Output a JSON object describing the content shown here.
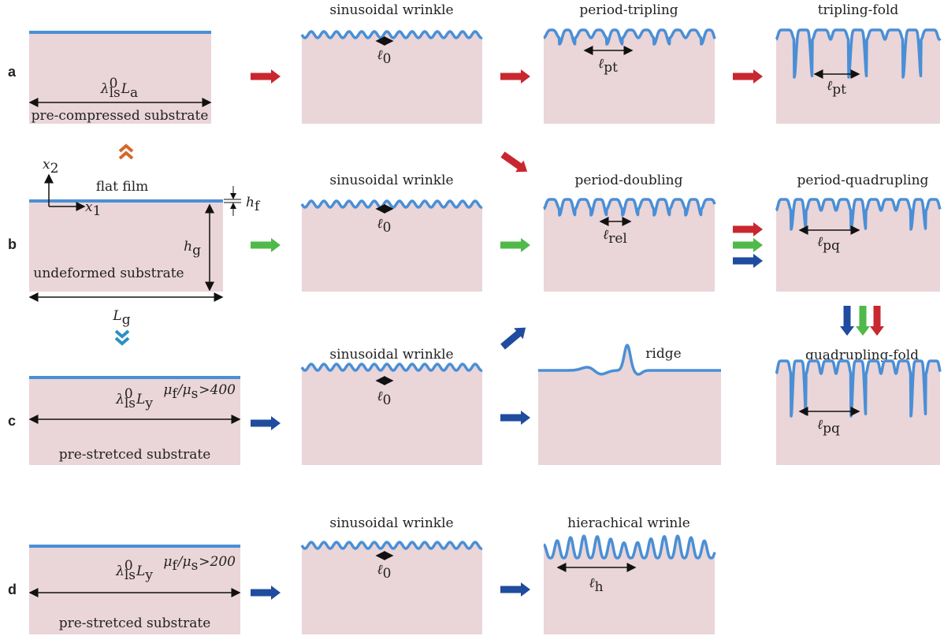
{
  "row_labels": [
    "a",
    "b",
    "c",
    "d"
  ],
  "titles": {
    "sin": "sinusoidal wrinkle",
    "pt": "period-tripling",
    "tf": "tripling-fold",
    "pd": "period-doubling",
    "pq": "period-quadrupling",
    "qf": "quadrupling-fold",
    "ridge": "ridge",
    "hw": "hierachical wrinle",
    "flat": "flat film"
  },
  "substrates": {
    "a": "pre-compressed substrate",
    "b": "undeformed substrate",
    "c": "pre-stretced substrate",
    "d": "pre-stretced substrate"
  },
  "math": {
    "La": [
      {
        "base": "λ",
        "sup": "0",
        "sub": "ls"
      },
      {
        "base": "L",
        "sub": "a"
      }
    ],
    "Ly_c": [
      {
        "base": "λ",
        "sup": "0",
        "sub": "ls"
      },
      {
        "base": "L",
        "sub": "y"
      }
    ],
    "Ly_d": [
      {
        "base": "λ",
        "sup": "0",
        "sub": "ls"
      },
      {
        "base": "L",
        "sub": "y"
      }
    ],
    "l0": [
      {
        "base": "ℓ",
        "sub": "0"
      }
    ],
    "lpt": [
      {
        "base": "ℓ",
        "sub": "pt"
      }
    ],
    "lrel": [
      {
        "base": "ℓ",
        "sub": "rel"
      }
    ],
    "lpq": [
      {
        "base": "ℓ",
        "sub": "pq"
      }
    ],
    "lh": [
      {
        "base": "ℓ",
        "sub": "h"
      }
    ],
    "x2": [
      {
        "base": "x",
        "sub": "2"
      }
    ],
    "x1": [
      {
        "base": "x",
        "sub": "1"
      }
    ],
    "hf": [
      {
        "base": "h",
        "sub": "f"
      }
    ],
    "hg": [
      {
        "base": "h",
        "sub": "g"
      }
    ],
    "Lg": [
      {
        "base": "L",
        "sub": "g"
      }
    ],
    "mu400": [
      {
        "base": "μ",
        "sub": "f"
      },
      {
        "base": "/μ",
        "sub": "s"
      },
      {
        "base": ">400"
      }
    ],
    "mu200": [
      {
        "base": "μ",
        "sub": "f"
      },
      {
        "base": "/μ",
        "sub": "s"
      },
      {
        "base": ">200"
      }
    ]
  }
}
